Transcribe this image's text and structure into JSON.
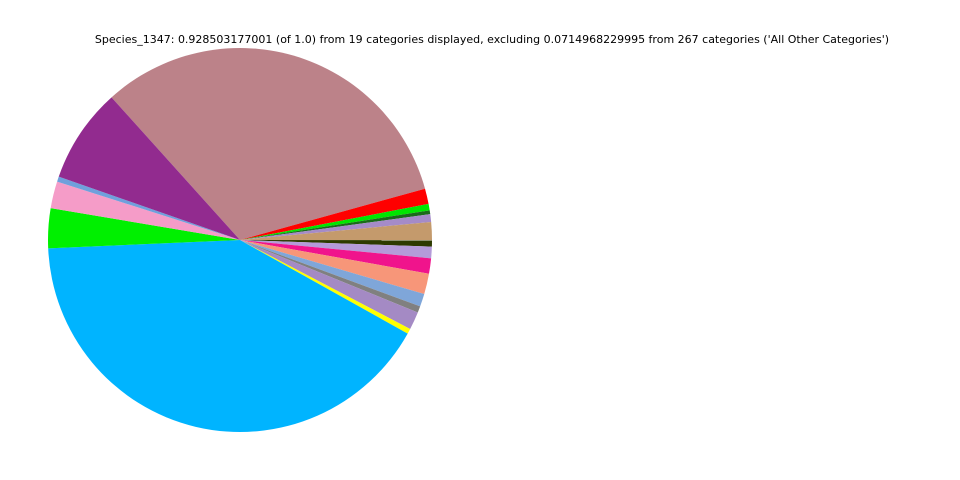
{
  "chart_data": {
    "type": "pie",
    "title": "Species_1347: 0.928503177001 (of 1.0) from 19 categories displayed, excluding 0.0714968229995 from 267 categories ('All Other Categories')",
    "categories": [
      null,
      null,
      null,
      null,
      null,
      null,
      null,
      null,
      null,
      null,
      null,
      null,
      null,
      null,
      null,
      null,
      null,
      null,
      null
    ],
    "values": [
      0.3,
      0.012,
      0.005,
      0.003,
      0.006,
      0.014,
      0.005,
      0.009,
      0.012,
      0.016,
      0.01,
      0.005,
      0.014,
      0.004,
      0.382,
      0.031,
      0.021,
      0.004,
      0.074
    ],
    "colors": [
      "#bc8289",
      "#ff0000",
      "#00e600",
      "#1a6b1a",
      "#a58bc8",
      "#c49a6c",
      "#2d3a00",
      "#b49bd9",
      "#f0148c",
      "#f79679",
      "#7fa6d9",
      "#808080",
      "#a48ac4",
      "#ffff00",
      "#00b4ff",
      "#00f000",
      "#f59cc8",
      "#6fa0dc",
      "#922b8f"
    ],
    "startangle": 132,
    "counterclock": false
  }
}
